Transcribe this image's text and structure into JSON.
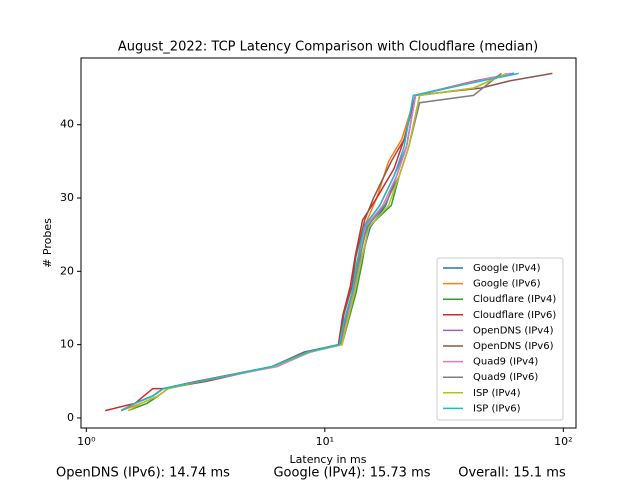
{
  "chart_data": {
    "type": "line",
    "title": "August_2022: TCP Latency Comparison with Cloudflare (median)",
    "x_label": "Latency in ms",
    "y_label": "# Probes",
    "log_x": true,
    "xlim": [
      0.95,
      113
    ],
    "ylim": [
      -1.37,
      49.1
    ],
    "xticks": [
      {
        "value": 1,
        "label": "10⁰"
      },
      {
        "value": 10,
        "label": "10¹"
      },
      {
        "value": 100,
        "label": "10²"
      }
    ],
    "yticks": [
      0,
      10,
      20,
      30,
      40
    ],
    "legend": "lower right",
    "annotations": [
      "OpenDNS (IPv6): 14.74 ms",
      "Google (IPv4): 15.73 ms",
      "Overall: 15.1 ms"
    ],
    "series": [
      {
        "name": "Google (IPv4)",
        "color": "#1f77b4",
        "x": [
          1.4,
          1.6,
          1.9,
          2.1,
          3,
          6,
          8.5,
          11.5,
          12.2,
          13.2,
          14,
          15.5,
          18,
          20,
          22,
          24,
          44,
          62
        ],
        "values": [
          1,
          2,
          3,
          4,
          5,
          7,
          9,
          10,
          13,
          17,
          21,
          26,
          29,
          33,
          37,
          44,
          46,
          47
        ]
      },
      {
        "name": "Google (IPv6)",
        "color": "#ff7f0e",
        "x": [
          1.4,
          1.7,
          2,
          2.2,
          3.1,
          6,
          8.6,
          11.6,
          12,
          13,
          13.6,
          14.6,
          16.5,
          18.5,
          21,
          24,
          45,
          60
        ],
        "values": [
          1,
          2,
          3,
          4,
          5,
          7,
          9,
          10,
          13,
          17,
          21,
          26,
          30,
          35,
          38,
          44,
          46,
          47
        ]
      },
      {
        "name": "Cloudflare (IPv4)",
        "color": "#2ca02c",
        "x": [
          1.5,
          1.8,
          2,
          2.2,
          3,
          6.2,
          8.7,
          11.8,
          12.5,
          13.5,
          14.3,
          15.2,
          19,
          20.5,
          22.5,
          25,
          42,
          58
        ],
        "values": [
          1,
          2,
          3,
          4,
          5,
          7,
          9,
          10,
          13,
          17,
          21,
          26,
          29,
          33,
          37,
          44,
          45,
          47
        ]
      },
      {
        "name": "Cloudflare (IPv6)",
        "color": "#d62728",
        "x": [
          1.2,
          1.6,
          1.9,
          2.1,
          2.9,
          6,
          8.4,
          11.4,
          11.9,
          12.8,
          13.4,
          14.4,
          16.5,
          19.5,
          21.5,
          24,
          43,
          62
        ],
        "values": [
          1,
          2,
          4,
          4,
          5,
          7,
          9,
          10,
          14,
          18,
          22,
          27,
          30,
          34,
          38,
          44,
          46,
          47
        ]
      },
      {
        "name": "OpenDNS (IPv4)",
        "color": "#9467bd",
        "x": [
          1.4,
          1.6,
          1.9,
          2.1,
          3,
          6.1,
          8.5,
          11.6,
          12.1,
          13,
          13.7,
          14.5,
          17,
          19.5,
          22,
          24,
          45,
          62
        ],
        "values": [
          1,
          2,
          3,
          4,
          5,
          7,
          9,
          10,
          13,
          17,
          21,
          26,
          29,
          33,
          37,
          44,
          46,
          47
        ]
      },
      {
        "name": "OpenDNS (IPv6)",
        "color": "#8c564b",
        "x": [
          1.4,
          1.6,
          1.9,
          2.1,
          3.2,
          6,
          8.2,
          11.5,
          12,
          13,
          13.5,
          14.7,
          16,
          19,
          21.5,
          24,
          45,
          60,
          90
        ],
        "values": [
          1,
          2,
          3,
          4,
          5,
          7,
          9,
          10,
          14,
          18,
          22,
          27,
          30,
          35,
          38,
          44,
          45,
          46,
          47
        ]
      },
      {
        "name": "Quad9 (IPv4)",
        "color": "#e377c2",
        "x": [
          1.4,
          1.6,
          1.9,
          2.1,
          3,
          6.3,
          8.7,
          11.7,
          12.3,
          13.1,
          13.9,
          14.8,
          17.5,
          20,
          22,
          24,
          44,
          60
        ],
        "values": [
          1,
          2,
          3,
          4,
          5,
          7,
          9,
          10,
          13,
          17,
          21,
          26,
          29,
          33,
          37,
          44,
          46,
          47
        ]
      },
      {
        "name": "Quad9 (IPv6)",
        "color": "#7f7f7f",
        "x": [
          1.4,
          1.6,
          1.9,
          2.1,
          3,
          6,
          8.5,
          11.6,
          12.1,
          13,
          13.8,
          15,
          17.8,
          20.5,
          22.5,
          25,
          42,
          55
        ],
        "values": [
          1,
          2,
          3,
          4,
          5,
          7,
          9,
          10,
          13,
          17,
          21,
          26,
          29,
          33,
          37,
          43,
          44,
          47
        ]
      },
      {
        "name": "ISP (IPv4)",
        "color": "#bcbd22",
        "x": [
          1.5,
          1.7,
          2,
          2.2,
          3,
          6.1,
          8.6,
          11.8,
          12.4,
          13.3,
          14.1,
          15.3,
          18.5,
          20.5,
          22.5,
          25,
          42,
          58
        ],
        "values": [
          1,
          2,
          3,
          4,
          5,
          7,
          9,
          10,
          13,
          17,
          21,
          26,
          29,
          33,
          37,
          44,
          45,
          47
        ]
      },
      {
        "name": "ISP (IPv6)",
        "color": "#17becf",
        "x": [
          1.4,
          1.6,
          1.9,
          2.1,
          3,
          6,
          8.5,
          11.5,
          12,
          13,
          13.6,
          14.6,
          17,
          19.5,
          21.5,
          23.5,
          46,
          65
        ],
        "values": [
          1,
          2,
          3,
          4,
          5,
          7,
          9,
          10,
          13,
          17,
          21,
          26,
          29,
          33,
          37,
          44,
          46,
          47
        ]
      }
    ]
  }
}
